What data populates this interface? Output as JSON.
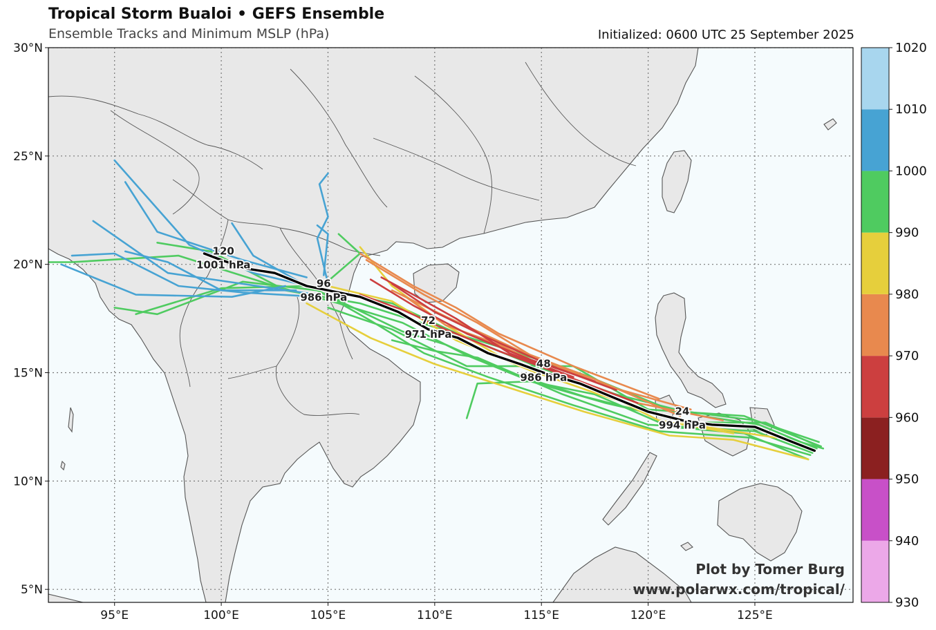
{
  "header": {
    "title": "Tropical Storm Bualoi • GEFS Ensemble",
    "subtitle": "Ensemble Tracks and Minimum MSLP (hPa)",
    "initialized": "Initialized: 0600 UTC 25 September 2025"
  },
  "credit": {
    "line1": "Plot by Tomer Burg",
    "line2": "www.polarwx.com/tropical/"
  },
  "colors": {
    "ocean": "#f5fbfd",
    "land": "#e8e8e8",
    "border": "#555555",
    "grid": "#777777",
    "mean_track": "#000000"
  },
  "chart_data": {
    "type": "map",
    "lon_range": [
      91.9,
      129.6
    ],
    "lat_range": [
      4.4,
      30.0
    ],
    "grid": true,
    "lon_ticks": [
      "95°E",
      "100°E",
      "105°E",
      "110°E",
      "115°E",
      "120°E",
      "125°E"
    ],
    "lat_ticks": [
      "5°N",
      "10°N",
      "15°N",
      "20°N",
      "25°N",
      "30°N"
    ],
    "colorbar": {
      "labels": [
        "930",
        "940",
        "950",
        "960",
        "970",
        "980",
        "990",
        "1000",
        "1010",
        "1020"
      ],
      "bins": [
        {
          "from": 930,
          "to": 940,
          "color": "#eca8e8"
        },
        {
          "from": 940,
          "to": 950,
          "color": "#c850c8"
        },
        {
          "from": 950,
          "to": 960,
          "color": "#8b2020"
        },
        {
          "from": 960,
          "to": 970,
          "color": "#cc3f3f"
        },
        {
          "from": 970,
          "to": 980,
          "color": "#e8894e"
        },
        {
          "from": 980,
          "to": 990,
          "color": "#e6cf3c"
        },
        {
          "from": 990,
          "to": 1000,
          "color": "#4fcb60"
        },
        {
          "from": 1000,
          "to": 1010,
          "color": "#47a3d3"
        },
        {
          "from": 1010,
          "to": 1020,
          "color": "#a8d6ee"
        }
      ]
    },
    "mean_track": [
      [
        127.8,
        11.4
      ],
      [
        126.5,
        11.9
      ],
      [
        125.0,
        12.5
      ],
      [
        123.0,
        12.6
      ],
      [
        121.6,
        12.8
      ],
      [
        120.0,
        13.2
      ],
      [
        118.5,
        13.8
      ],
      [
        116.8,
        14.5
      ],
      [
        115.1,
        15.0
      ],
      [
        114.0,
        15.4
      ],
      [
        112.5,
        15.9
      ],
      [
        111.1,
        16.6
      ],
      [
        109.7,
        17.0
      ],
      [
        108.3,
        17.8
      ],
      [
        106.5,
        18.5
      ],
      [
        104.0,
        19.0
      ],
      [
        102.5,
        19.6
      ],
      [
        101.2,
        19.8
      ],
      [
        100.0,
        20.2
      ],
      [
        99.2,
        20.5
      ]
    ],
    "forecast_labels": [
      {
        "hour": "24",
        "pressure": "994 hPa",
        "lon": 121.6,
        "lat": 12.8
      },
      {
        "hour": "48",
        "pressure": "986 hPa",
        "lon": 115.1,
        "lat": 15.0
      },
      {
        "hour": "72",
        "pressure": "971 hPa",
        "lon": 109.7,
        "lat": 17.0
      },
      {
        "hour": "96",
        "pressure": "986 hPa",
        "lon": 104.8,
        "lat": 18.7
      },
      {
        "hour": "120",
        "pressure": "1001 hPa",
        "lon": 100.1,
        "lat": 20.2
      }
    ],
    "ensemble_tracks": [
      {
        "color": "#4fcb60",
        "points": [
          [
            128.0,
            11.6
          ],
          [
            125.5,
            12.7
          ],
          [
            122.0,
            12.7
          ],
          [
            118.0,
            13.6
          ],
          [
            114.5,
            14.6
          ],
          [
            111.5,
            15.8
          ],
          [
            108.5,
            17.3
          ],
          [
            105.5,
            18.2
          ],
          [
            102.5,
            19.0
          ],
          [
            98.0,
            20.4
          ],
          [
            93.0,
            20.1
          ],
          [
            91.9,
            20.1
          ]
        ]
      },
      {
        "color": "#4fcb60",
        "points": [
          [
            128.2,
            11.5
          ],
          [
            125.0,
            12.4
          ],
          [
            121.0,
            12.9
          ],
          [
            117.0,
            13.9
          ],
          [
            113.5,
            15.0
          ],
          [
            110.5,
            16.3
          ],
          [
            108.5,
            16.9
          ],
          [
            104.5,
            18.8
          ],
          [
            101.0,
            19.2
          ],
          [
            97.0,
            17.7
          ],
          [
            95.0,
            18.0
          ]
        ]
      },
      {
        "color": "#4fcb60",
        "points": [
          [
            127.5,
            11.0
          ],
          [
            124.5,
            12.2
          ],
          [
            121.0,
            12.5
          ],
          [
            117.5,
            14.0
          ],
          [
            114.5,
            14.6
          ],
          [
            112.0,
            14.5
          ],
          [
            111.5,
            12.9
          ]
        ]
      },
      {
        "color": "#4fcb60",
        "points": [
          [
            128.0,
            11.8
          ],
          [
            125.0,
            12.8
          ],
          [
            121.0,
            13.3
          ],
          [
            117.0,
            14.9
          ],
          [
            113.0,
            16.2
          ],
          [
            110.0,
            17.1
          ],
          [
            106.5,
            18.2
          ],
          [
            103.0,
            18.8
          ],
          [
            99.5,
            20.6
          ],
          [
            97.0,
            21.0
          ]
        ]
      },
      {
        "color": "#4fcb60",
        "points": [
          [
            127.6,
            11.2
          ],
          [
            124.8,
            12.0
          ],
          [
            120.5,
            12.3
          ],
          [
            116.5,
            13.5
          ],
          [
            112.5,
            14.8
          ],
          [
            109.5,
            15.9
          ],
          [
            107.0,
            17.4
          ],
          [
            104.5,
            18.8
          ],
          [
            106.5,
            20.5
          ],
          [
            105.5,
            21.4
          ]
        ]
      },
      {
        "color": "#4fcb60",
        "points": [
          [
            127.9,
            11.5
          ],
          [
            125.2,
            12.6
          ],
          [
            122.5,
            13.0
          ],
          [
            118.5,
            14.0
          ],
          [
            115.0,
            15.2
          ],
          [
            111.5,
            16.6
          ],
          [
            108.0,
            18.2
          ],
          [
            104.0,
            19.0
          ],
          [
            100.0,
            18.9
          ],
          [
            96.0,
            17.7
          ]
        ]
      },
      {
        "color": "#4fcb60",
        "points": [
          [
            127.7,
            11.3
          ],
          [
            125.0,
            12.3
          ],
          [
            120.0,
            12.6
          ],
          [
            116.0,
            14.0
          ],
          [
            112.0,
            15.7
          ],
          [
            110.0,
            16.0
          ],
          [
            108.0,
            16.5
          ]
        ]
      },
      {
        "color": "#4fcb60",
        "points": [
          [
            128.1,
            11.6
          ],
          [
            124.5,
            13.0
          ],
          [
            120.0,
            13.3
          ],
          [
            116.5,
            15.3
          ],
          [
            111.5,
            15.3
          ],
          [
            108.0,
            17.0
          ],
          [
            105.0,
            18.0
          ]
        ]
      },
      {
        "color": "#e6cf3c",
        "points": [
          [
            127.5,
            11.0
          ],
          [
            124.0,
            11.9
          ],
          [
            121.0,
            12.1
          ],
          [
            117.0,
            13.2
          ],
          [
            113.5,
            14.3
          ],
          [
            110.0,
            15.4
          ],
          [
            107.0,
            16.6
          ],
          [
            104.0,
            18.2
          ]
        ]
      },
      {
        "color": "#e6cf3c",
        "points": [
          [
            126.0,
            12.0
          ],
          [
            122.0,
            12.6
          ],
          [
            118.0,
            13.9
          ],
          [
            114.5,
            15.1
          ],
          [
            111.0,
            16.5
          ],
          [
            108.0,
            18.3
          ],
          [
            105.0,
            19.0
          ]
        ]
      },
      {
        "color": "#e6cf3c",
        "points": [
          [
            124.0,
            12.2
          ],
          [
            120.5,
            12.8
          ],
          [
            117.0,
            14.5
          ],
          [
            113.5,
            15.5
          ],
          [
            110.5,
            17.2
          ],
          [
            108.0,
            19.0
          ],
          [
            106.5,
            20.8
          ]
        ]
      },
      {
        "color": "#e8894e",
        "points": [
          [
            123.5,
            12.8
          ],
          [
            119.5,
            13.6
          ],
          [
            116.0,
            14.9
          ],
          [
            113.0,
            16.3
          ],
          [
            110.5,
            17.2
          ],
          [
            108.5,
            18.6
          ]
        ]
      },
      {
        "color": "#e8894e",
        "points": [
          [
            122.0,
            13.3
          ],
          [
            118.0,
            14.4
          ],
          [
            114.5,
            15.8
          ],
          [
            112.0,
            17.3
          ],
          [
            109.5,
            18.6
          ],
          [
            106.8,
            20.2
          ]
        ]
      },
      {
        "color": "#e8894e",
        "points": [
          [
            121.5,
            13.0
          ],
          [
            117.5,
            14.7
          ],
          [
            114.0,
            16.0
          ],
          [
            110.5,
            17.6
          ],
          [
            108.0,
            18.8
          ]
        ]
      },
      {
        "color": "#e8894e",
        "points": [
          [
            120.5,
            13.8
          ],
          [
            116.5,
            15.3
          ],
          [
            113.0,
            16.8
          ],
          [
            111.0,
            18.0
          ],
          [
            109.0,
            19.0
          ],
          [
            106.5,
            20.5
          ]
        ]
      },
      {
        "color": "#cc3f3f",
        "points": [
          [
            119.5,
            13.6
          ],
          [
            116.0,
            14.9
          ],
          [
            113.0,
            16.0
          ],
          [
            110.5,
            17.0
          ],
          [
            108.5,
            17.9
          ],
          [
            106.5,
            18.6
          ]
        ]
      },
      {
        "color": "#cc3f3f",
        "points": [
          [
            118.5,
            14.2
          ],
          [
            115.5,
            15.3
          ],
          [
            112.5,
            16.6
          ],
          [
            110.0,
            17.8
          ],
          [
            108.0,
            19.1
          ]
        ]
      },
      {
        "color": "#cc3f3f",
        "points": [
          [
            117.5,
            14.6
          ],
          [
            114.5,
            15.6
          ],
          [
            111.5,
            16.8
          ],
          [
            109.0,
            18.1
          ],
          [
            107.0,
            19.3
          ]
        ]
      },
      {
        "color": "#cc3f3f",
        "points": [
          [
            116.5,
            14.8
          ],
          [
            113.5,
            15.9
          ],
          [
            111.0,
            17.5
          ],
          [
            109.0,
            18.6
          ],
          [
            107.5,
            19.4
          ]
        ]
      },
      {
        "color": "#47a3d3",
        "points": [
          [
            104.5,
            18.5
          ],
          [
            101.0,
            18.7
          ],
          [
            98.0,
            19.0
          ],
          [
            95.0,
            20.5
          ],
          [
            93.0,
            20.4
          ]
        ]
      },
      {
        "color": "#47a3d3",
        "points": [
          [
            104.5,
            18.9
          ],
          [
            101.5,
            19.6
          ],
          [
            98.5,
            20.9
          ],
          [
            95.0,
            24.8
          ]
        ]
      },
      {
        "color": "#47a3d3",
        "points": [
          [
            104.0,
            19.4
          ],
          [
            101.0,
            20.2
          ],
          [
            97.0,
            21.5
          ],
          [
            95.5,
            23.8
          ]
        ]
      },
      {
        "color": "#47a3d3",
        "points": [
          [
            104.5,
            18.6
          ],
          [
            101.0,
            19.1
          ],
          [
            97.5,
            19.6
          ],
          [
            94.0,
            22.0
          ]
        ]
      },
      {
        "color": "#47a3d3",
        "points": [
          [
            105.0,
            19.1
          ],
          [
            104.5,
            21.2
          ],
          [
            105.0,
            22.2
          ],
          [
            104.6,
            23.7
          ],
          [
            105.0,
            24.2
          ]
        ]
      },
      {
        "color": "#47a3d3",
        "points": [
          [
            104.8,
            19.5
          ],
          [
            105.0,
            21.4
          ],
          [
            104.5,
            21.8
          ]
        ]
      },
      {
        "color": "#47a3d3",
        "points": [
          [
            103.0,
            19.0
          ],
          [
            100.5,
            18.5
          ],
          [
            96.0,
            18.6
          ],
          [
            92.5,
            20.0
          ]
        ]
      },
      {
        "color": "#47a3d3",
        "points": [
          [
            104.0,
            19.0
          ],
          [
            101.5,
            20.4
          ],
          [
            100.5,
            21.9
          ]
        ]
      },
      {
        "color": "#47a3d3",
        "points": [
          [
            103.5,
            18.8
          ],
          [
            100.0,
            18.8
          ],
          [
            97.5,
            20.1
          ],
          [
            95.5,
            20.6
          ]
        ]
      }
    ]
  }
}
